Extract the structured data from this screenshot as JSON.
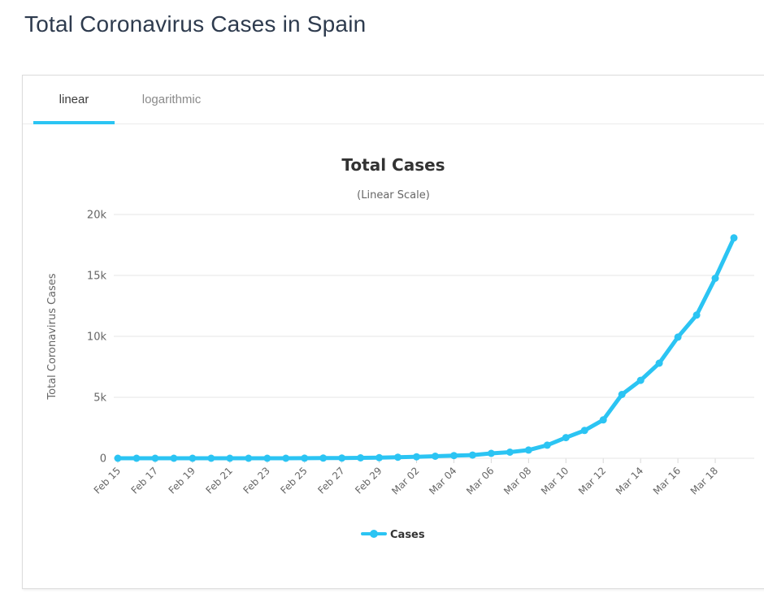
{
  "page": {
    "title": "Total Coronavirus Cases in Spain"
  },
  "tabs": [
    {
      "label": "linear",
      "active": true
    },
    {
      "label": "logarithmic",
      "active": false
    }
  ],
  "colors": {
    "accent": "#2bc4f3",
    "grid": "#e6e6e6",
    "tick": "#d8d8d8",
    "axis_text": "#666666",
    "title_text": "#333333",
    "page_title": "#2e3b4e",
    "tab_active": "#3c3c3c",
    "tab_inactive": "#8a8a8a",
    "card_border": "#dcdcdc"
  },
  "chart_data": {
    "type": "line",
    "title": "Total Cases",
    "subtitle": "(Linear Scale)",
    "xlabel": "",
    "ylabel": "Total Coronavirus Cases",
    "legend_position": "bottom",
    "grid": true,
    "ylim": [
      0,
      20000
    ],
    "yticks": [
      {
        "value": 0,
        "label": "0"
      },
      {
        "value": 5000,
        "label": "5k"
      },
      {
        "value": 10000,
        "label": "10k"
      },
      {
        "value": 15000,
        "label": "15k"
      },
      {
        "value": 20000,
        "label": "20k"
      }
    ],
    "xtick_every": 2,
    "x": [
      "Feb 15",
      "Feb 16",
      "Feb 17",
      "Feb 18",
      "Feb 19",
      "Feb 20",
      "Feb 21",
      "Feb 22",
      "Feb 23",
      "Feb 24",
      "Feb 25",
      "Feb 26",
      "Feb 27",
      "Feb 28",
      "Feb 29",
      "Mar 01",
      "Mar 02",
      "Mar 03",
      "Mar 04",
      "Mar 05",
      "Mar 06",
      "Mar 07",
      "Mar 08",
      "Mar 09",
      "Mar 10",
      "Mar 11",
      "Mar 12",
      "Mar 13",
      "Mar 14",
      "Mar 15",
      "Mar 16",
      "Mar 17",
      "Mar 18",
      "Mar 19"
    ],
    "series": [
      {
        "name": "Cases",
        "color": "#2bc4f3",
        "values": [
          2,
          2,
          2,
          2,
          2,
          2,
          2,
          2,
          2,
          3,
          6,
          13,
          15,
          32,
          45,
          84,
          120,
          165,
          222,
          259,
          400,
          500,
          673,
          1073,
          1695,
          2277,
          3146,
          5232,
          6391,
          7798,
          9942,
          11748,
          14769,
          18077
        ]
      }
    ]
  }
}
